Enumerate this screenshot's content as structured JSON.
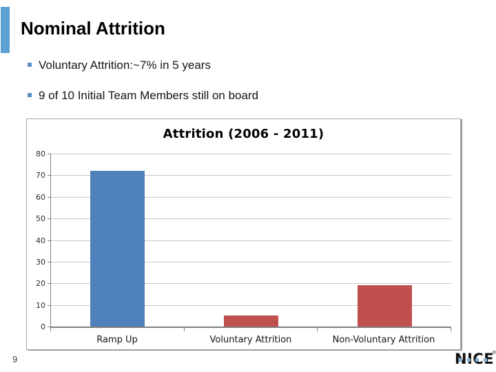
{
  "slide": {
    "title": "Nominal Attrition",
    "bullets": [
      "Voluntary Attrition:~7% in 5 years",
      "9 of 10 Initial Team Members still on board"
    ],
    "page_number": "9"
  },
  "footer": {
    "logo_text": "NICE",
    "logo_reg": "®"
  },
  "colors": {
    "accent_bar": "#5BA0D2",
    "bullet_square": "#5B8FC0",
    "bar_blue": "#4F81BD",
    "bar_red": "#C0504D",
    "gridline": "#C8C8C8",
    "axis": "#7F7F7F",
    "chart_border": "#A6A6A6",
    "logo_square": "#7FB3DC"
  },
  "chart_data": {
    "type": "bar",
    "title": "Attrition (2006 - 2011)",
    "categories": [
      "Ramp Up",
      "Voluntary Attrition",
      "Non-Voluntary Attrition"
    ],
    "values": [
      72,
      5,
      19
    ],
    "series_colors": [
      "#4F81BD",
      "#C0504D",
      "#C0504D"
    ],
    "ylim": [
      0,
      80
    ],
    "ytick_step": 10,
    "grid": true,
    "legend": "none",
    "xlabel": "",
    "ylabel": ""
  }
}
